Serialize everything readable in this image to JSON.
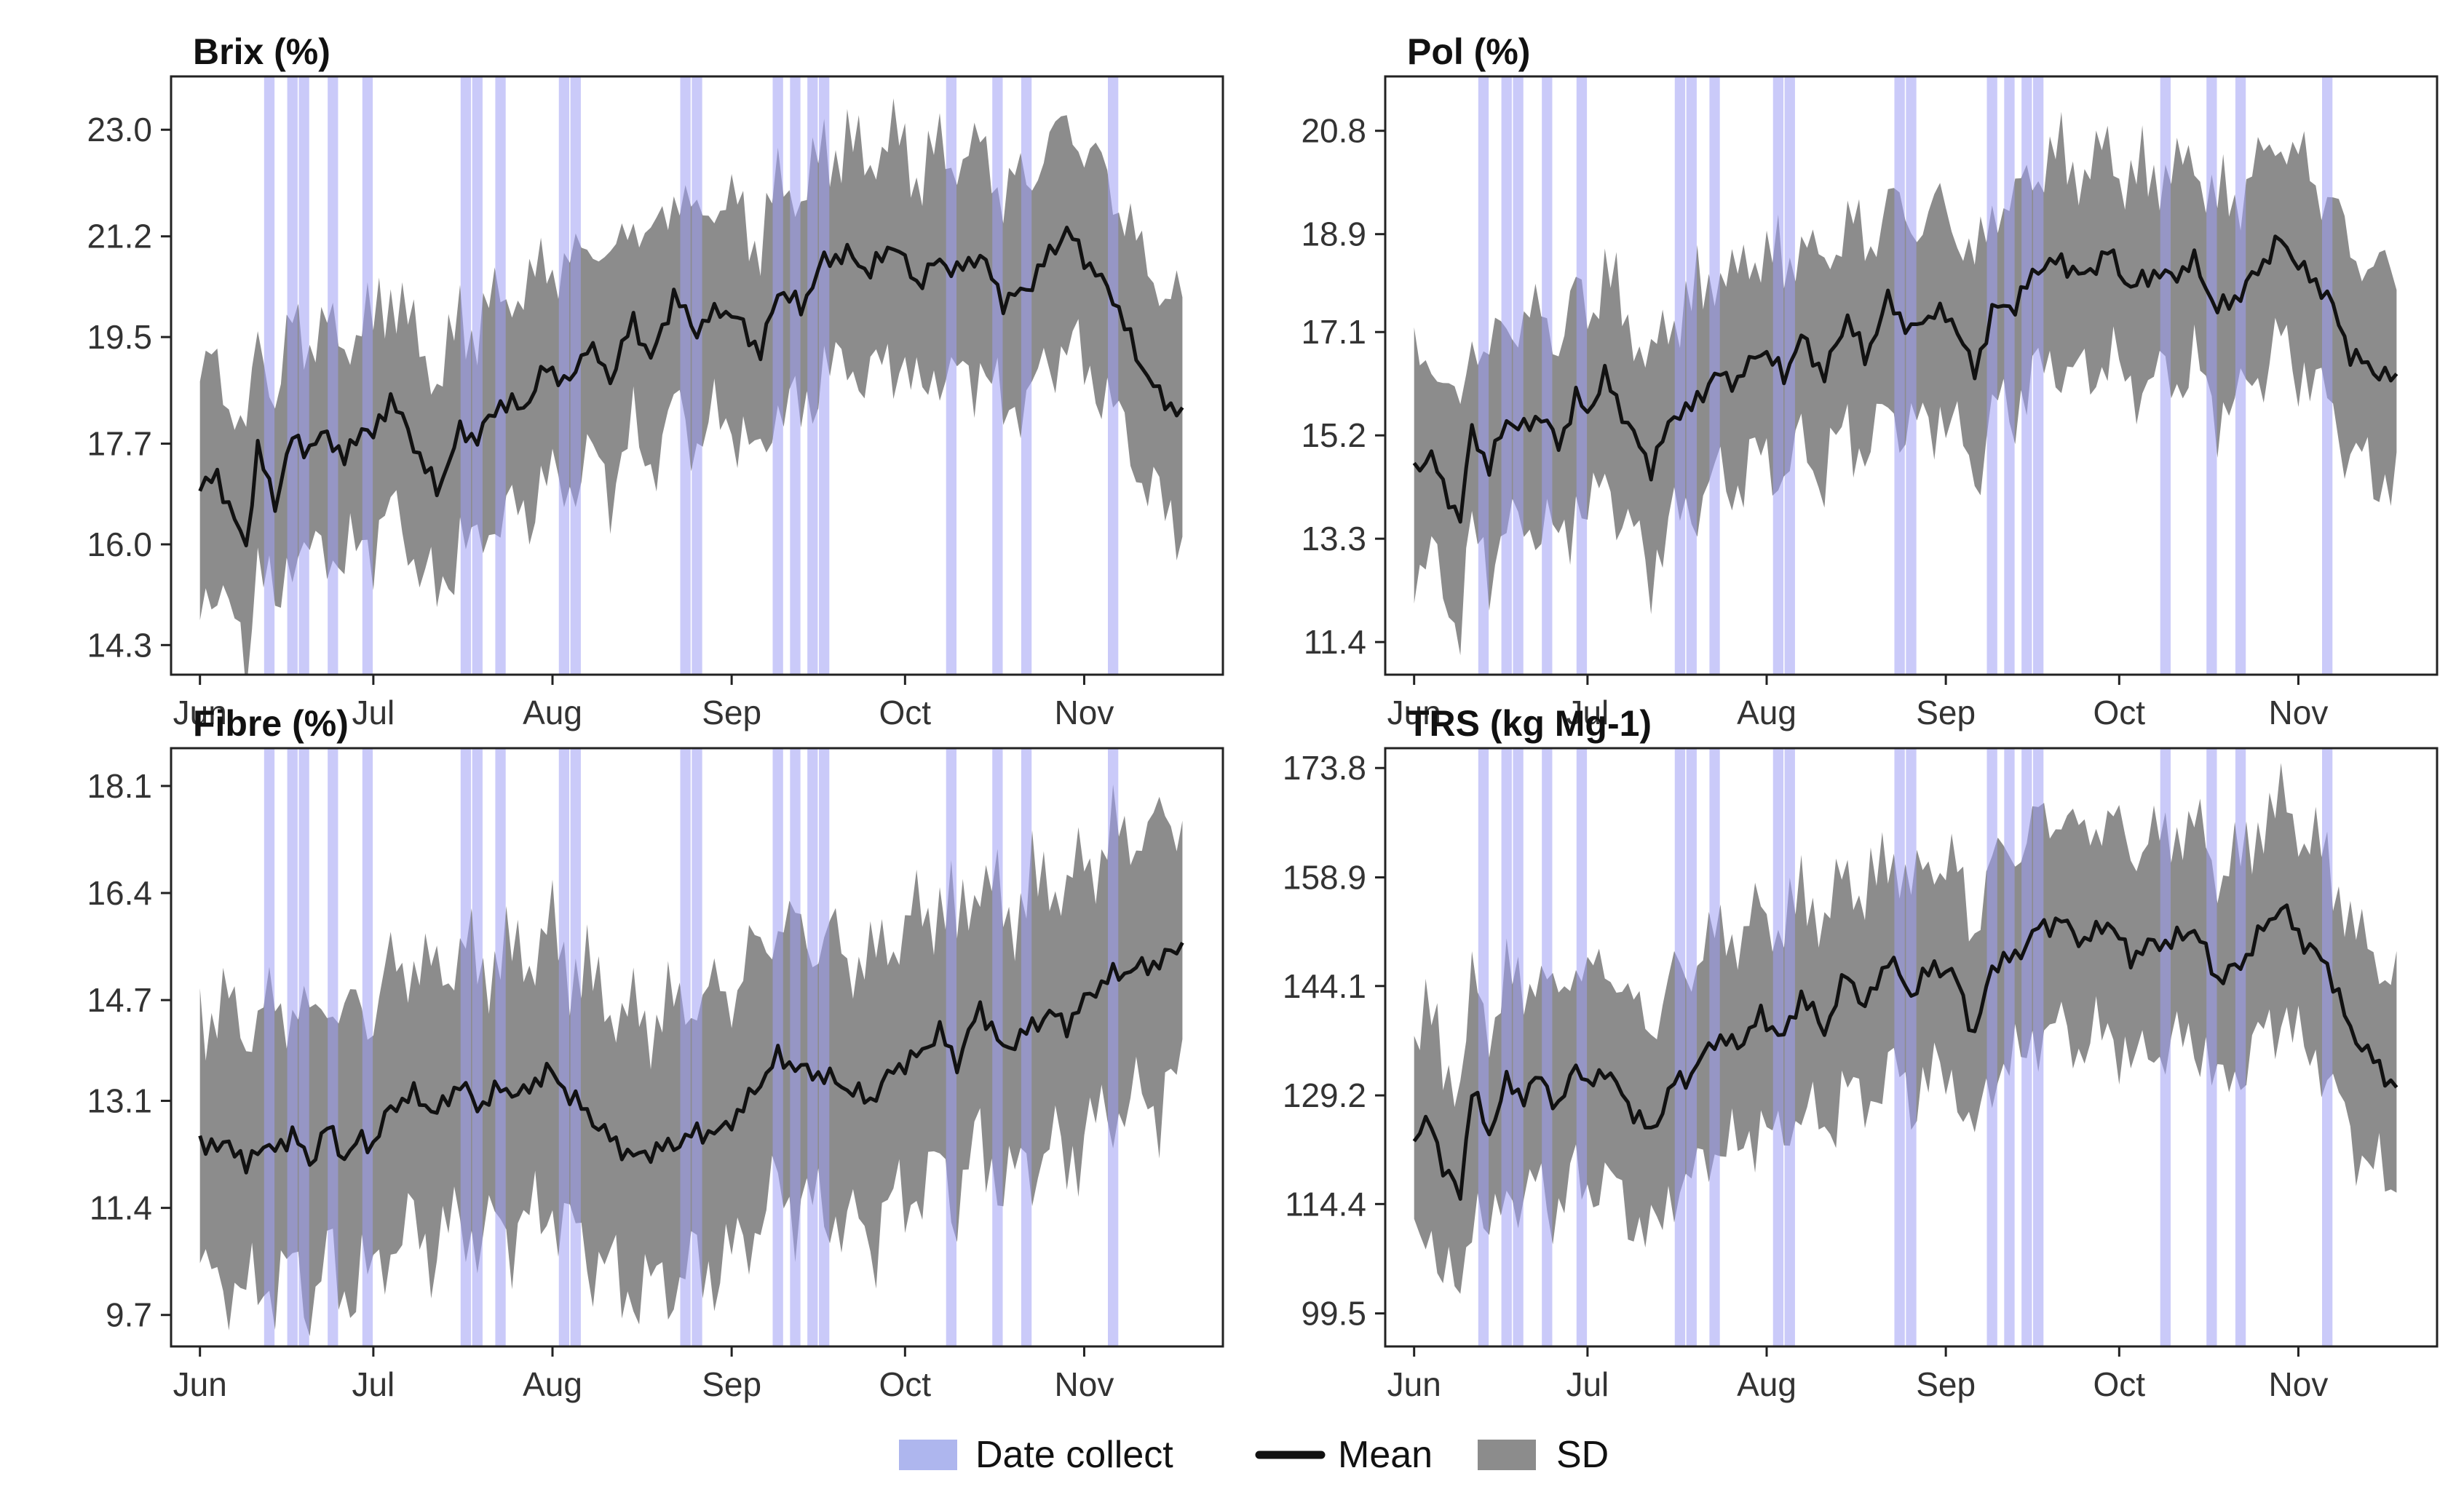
{
  "colors": {
    "date_band": "#9f9ff4",
    "sd_band": "#8c8c8c",
    "mean_line": "#111111",
    "legend_date": "#aeb6ee"
  },
  "legend": {
    "date_collect": "Date collect",
    "mean": "Mean",
    "sd": "SD"
  },
  "chart_data": [
    {
      "type": "line",
      "title": "Brix (%)",
      "xlabel": "",
      "ylabel": "",
      "x_ticks": [
        "Jun",
        "Jul",
        "Aug",
        "Sep",
        "Oct",
        "Nov"
      ],
      "y_ticks": [
        14.3,
        16.0,
        17.7,
        19.5,
        21.2,
        23.0
      ],
      "y_tick_labels": [
        "14.3",
        "16.0",
        "17.7",
        "19.5",
        "21.2",
        "23.0"
      ],
      "ylim": [
        13.8,
        23.9
      ],
      "mean_anchors": {
        "day": [
          0,
          3,
          5,
          8,
          10,
          13,
          16,
          19,
          22,
          25,
          28,
          30,
          33,
          37,
          41,
          45,
          48,
          52,
          56,
          60,
          64,
          67,
          71,
          75,
          78,
          82,
          86,
          90,
          94,
          97,
          100,
          104,
          108,
          112,
          116,
          120,
          124,
          128,
          131,
          135,
          139,
          143,
          147,
          150,
          154,
          158,
          162,
          166,
          170
        ],
        "value": [
          16.9,
          17.2,
          16.6,
          16.0,
          17.6,
          16.7,
          17.8,
          17.6,
          17.9,
          17.4,
          18.0,
          17.8,
          18.5,
          17.7,
          16.9,
          17.9,
          17.8,
          18.4,
          18.3,
          19.0,
          18.7,
          19.4,
          18.8,
          19.8,
          19.1,
          20.2,
          19.6,
          20.0,
          19.7,
          19.2,
          20.3,
          20.0,
          20.8,
          20.9,
          20.6,
          21.1,
          20.4,
          20.8,
          20.6,
          20.9,
          20.1,
          20.3,
          20.9,
          21.3,
          20.7,
          20.2,
          19.2,
          18.5,
          18.2
        ]
      },
      "sd_half_width_range": [
        1.5,
        2.2
      ],
      "collection_dates_day": [
        12,
        16,
        18,
        23,
        29,
        46,
        48,
        52,
        63,
        65,
        84,
        86,
        100,
        103,
        106,
        108,
        130,
        138,
        143,
        158
      ]
    },
    {
      "type": "line",
      "title": "Pol (%)",
      "xlabel": "",
      "ylabel": "",
      "x_ticks": [
        "Jun",
        "Jul",
        "Aug",
        "Sep",
        "Oct",
        "Nov"
      ],
      "y_ticks": [
        11.4,
        13.3,
        15.2,
        17.1,
        18.9,
        20.8
      ],
      "y_tick_labels": [
        "11.4",
        "13.3",
        "15.2",
        "17.1",
        "18.9",
        "20.8"
      ],
      "ylim": [
        10.8,
        21.8
      ],
      "mean_anchors": {
        "day": [
          0,
          3,
          5,
          8,
          10,
          13,
          16,
          19,
          22,
          25,
          28,
          30,
          33,
          37,
          41,
          45,
          48,
          52,
          56,
          60,
          64,
          67,
          71,
          75,
          78,
          82,
          86,
          90,
          94,
          97,
          100,
          104,
          108,
          112,
          116,
          120,
          124,
          128,
          131,
          135,
          139,
          143,
          147,
          150,
          154,
          158,
          162,
          166,
          170
        ],
        "value": [
          14.5,
          14.9,
          14.2,
          13.7,
          15.3,
          14.6,
          15.5,
          15.3,
          15.6,
          15.0,
          15.9,
          15.6,
          16.3,
          15.4,
          14.6,
          15.6,
          15.7,
          16.3,
          16.2,
          16.8,
          16.3,
          17.0,
          16.3,
          17.4,
          16.6,
          17.7,
          17.1,
          17.5,
          17.2,
          16.3,
          17.5,
          17.6,
          18.3,
          18.4,
          18.1,
          18.6,
          17.9,
          18.2,
          18.1,
          18.4,
          17.5,
          17.8,
          18.4,
          18.8,
          18.2,
          17.8,
          16.7,
          16.4,
          16.2
        ]
      },
      "sd_half_width_range": [
        1.5,
        2.3
      ],
      "collection_dates_day": [
        12,
        16,
        18,
        23,
        29,
        46,
        48,
        52,
        63,
        65,
        84,
        86,
        100,
        103,
        106,
        108,
        130,
        138,
        143,
        158
      ]
    },
    {
      "type": "line",
      "title": "Fibre (%)",
      "xlabel": "",
      "ylabel": "",
      "x_ticks": [
        "Jun",
        "Jul",
        "Aug",
        "Sep",
        "Oct",
        "Nov"
      ],
      "y_ticks": [
        9.7,
        11.4,
        13.1,
        14.7,
        16.4,
        18.1
      ],
      "y_tick_labels": [
        "9.7",
        "11.4",
        "13.1",
        "14.7",
        "16.4",
        "18.1"
      ],
      "ylim": [
        9.2,
        18.7
      ],
      "mean_anchors": {
        "day": [
          0,
          3,
          5,
          8,
          10,
          13,
          16,
          19,
          22,
          25,
          28,
          30,
          33,
          37,
          41,
          45,
          48,
          52,
          56,
          60,
          64,
          67,
          71,
          75,
          78,
          82,
          86,
          90,
          94,
          97,
          100,
          104,
          108,
          112,
          116,
          120,
          124,
          128,
          131,
          135,
          139,
          143,
          147,
          150,
          154,
          158,
          162,
          166,
          170
        ],
        "value": [
          12.5,
          12.3,
          12.5,
          12.0,
          12.4,
          12.3,
          12.6,
          12.1,
          12.7,
          12.2,
          12.5,
          12.4,
          13.0,
          13.2,
          12.9,
          13.4,
          13.0,
          13.3,
          13.2,
          13.6,
          13.2,
          12.9,
          12.5,
          12.2,
          12.3,
          12.4,
          12.6,
          12.6,
          13.0,
          13.4,
          13.8,
          13.6,
          13.5,
          13.3,
          13.1,
          13.6,
          13.8,
          14.2,
          13.7,
          14.6,
          13.9,
          14.2,
          14.5,
          14.3,
          14.8,
          15.1,
          15.2,
          15.3,
          15.6
        ]
      },
      "sd_half_width_range": [
        1.7,
        2.6
      ],
      "collection_dates_day": [
        12,
        16,
        18,
        23,
        29,
        46,
        48,
        52,
        63,
        65,
        84,
        86,
        100,
        103,
        106,
        108,
        130,
        138,
        143,
        158
      ]
    },
    {
      "type": "line",
      "title": "TRS (kg Mg-1)",
      "xlabel": "",
      "ylabel": "",
      "x_ticks": [
        "Jun",
        "Jul",
        "Aug",
        "Sep",
        "Oct",
        "Nov"
      ],
      "y_ticks": [
        99.5,
        114.4,
        129.2,
        144.1,
        158.9,
        173.8
      ],
      "y_tick_labels": [
        "99.5",
        "114.4",
        "129.2",
        "144.1",
        "158.9",
        "173.8"
      ],
      "ylim": [
        95.0,
        176.5
      ],
      "mean_anchors": {
        "day": [
          0,
          3,
          5,
          8,
          10,
          13,
          16,
          19,
          22,
          25,
          28,
          30,
          33,
          37,
          41,
          45,
          48,
          52,
          56,
          60,
          64,
          67,
          71,
          75,
          78,
          82,
          86,
          90,
          94,
          97,
          100,
          104,
          108,
          112,
          116,
          120,
          124,
          128,
          131,
          135,
          139,
          143,
          147,
          150,
          154,
          158,
          162,
          166,
          170
        ],
        "value": [
          123.0,
          126.0,
          119.0,
          116.0,
          130.0,
          124.0,
          131.0,
          129.0,
          132.0,
          127.0,
          134.0,
          130.0,
          133.0,
          128.0,
          124.0,
          131.0,
          132.0,
          137.0,
          136.0,
          140.0,
          137.0,
          143.0,
          138.0,
          146.0,
          141.0,
          148.0,
          143.0,
          147.0,
          145.0,
          137.0,
          147.0,
          148.0,
          152.0,
          153.0,
          150.0,
          153.0,
          148.0,
          150.0,
          150.0,
          152.0,
          145.0,
          147.0,
          152.0,
          155.0,
          150.0,
          147.0,
          138.0,
          134.0,
          130.0
        ]
      },
      "sd_half_width_range": [
        12.0,
        17.0
      ],
      "collection_dates_day": [
        12,
        16,
        18,
        23,
        29,
        46,
        48,
        52,
        63,
        65,
        84,
        86,
        100,
        103,
        106,
        108,
        130,
        138,
        143,
        158
      ]
    }
  ]
}
